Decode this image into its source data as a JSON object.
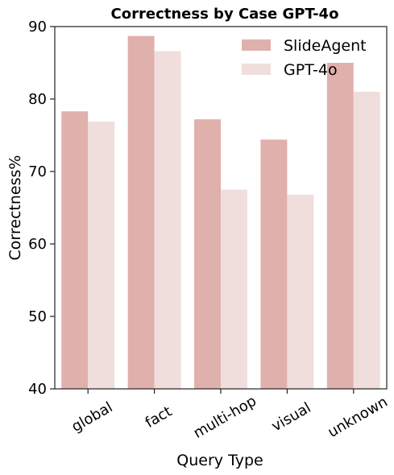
{
  "chart_data": {
    "type": "bar",
    "title": "Correctness by Case GPT-4o",
    "xlabel": "Query Type",
    "ylabel": "Correctness%",
    "categories": [
      "global",
      "fact",
      "multi-hop",
      "visual",
      "unknown"
    ],
    "series": [
      {
        "name": "SlideAgent",
        "color": "#e0b0ad",
        "values": [
          78.3,
          88.7,
          77.2,
          74.4,
          85.0
        ]
      },
      {
        "name": "GPT-4o",
        "color": "#f0dedd",
        "values": [
          76.9,
          86.6,
          67.5,
          66.8,
          81.0
        ]
      }
    ],
    "ylim": [
      40,
      90
    ],
    "yticks": [
      40,
      50,
      60,
      70,
      80,
      90
    ],
    "grid": false,
    "legend_position": "top-right"
  }
}
